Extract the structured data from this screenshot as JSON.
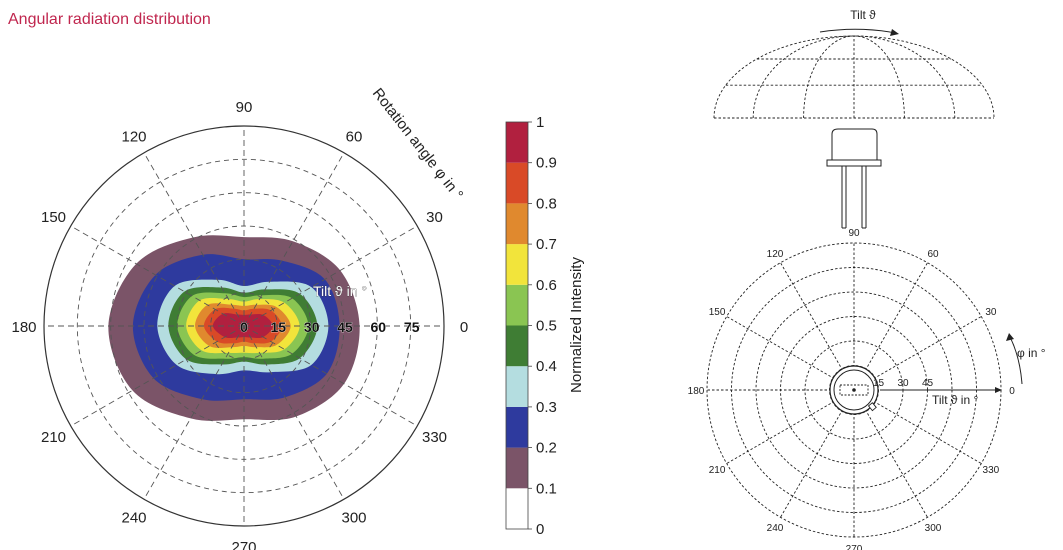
{
  "page": {
    "title": "Angular radiation distribution"
  },
  "chart_data": {
    "type": "heatmap",
    "subtype": "polar-contour",
    "title": "Angular radiation distribution",
    "rotation_axis": {
      "label": "Rotation angle φ in °",
      "ticks": [
        0,
        30,
        60,
        90,
        120,
        150,
        180,
        210,
        240,
        270,
        300,
        330
      ]
    },
    "tilt_axis": {
      "label": "Tilt ϑ in °",
      "range": [
        0,
        90
      ],
      "ticks": [
        0,
        15,
        30,
        45,
        60,
        75
      ]
    },
    "colorbar": {
      "label": "Normalized Intensity",
      "range": [
        0,
        1
      ],
      "ticks": [
        0,
        0.1,
        0.2,
        0.3,
        0.4,
        0.5,
        0.6,
        0.7,
        0.8,
        0.9,
        1
      ],
      "levels": [
        {
          "from": 0.0,
          "to": 0.1,
          "color": "#ffffff"
        },
        {
          "from": 0.1,
          "to": 0.2,
          "color": "#7b5468"
        },
        {
          "from": 0.2,
          "to": 0.3,
          "color": "#2e3a9e"
        },
        {
          "from": 0.3,
          "to": 0.4,
          "color": "#b4dde0"
        },
        {
          "from": 0.4,
          "to": 0.5,
          "color": "#3f7d34"
        },
        {
          "from": 0.5,
          "to": 0.6,
          "color": "#8ac552"
        },
        {
          "from": 0.6,
          "to": 0.7,
          "color": "#f2e43b"
        },
        {
          "from": 0.7,
          "to": 0.8,
          "color": "#e0892e"
        },
        {
          "from": 0.8,
          "to": 0.9,
          "color": "#d94a27"
        },
        {
          "from": 0.9,
          "to": 1.0,
          "color": "#b1203f"
        }
      ]
    },
    "contours": [
      {
        "level": 0.1,
        "tilt_by_angle": [
          {
            "phi": 0,
            "tilt": 52
          },
          {
            "phi": 30,
            "tilt": 50
          },
          {
            "phi": 60,
            "tilt": 44
          },
          {
            "phi": 90,
            "tilt": 40
          },
          {
            "phi": 120,
            "tilt": 46
          },
          {
            "phi": 150,
            "tilt": 56
          },
          {
            "phi": 180,
            "tilt": 61
          },
          {
            "phi": 210,
            "tilt": 58
          },
          {
            "phi": 240,
            "tilt": 48
          },
          {
            "phi": 270,
            "tilt": 42
          },
          {
            "phi": 300,
            "tilt": 47
          },
          {
            "phi": 330,
            "tilt": 52
          }
        ]
      },
      {
        "level": 0.2,
        "tilt_by_angle": [
          {
            "phi": 0,
            "tilt": 43
          },
          {
            "phi": 30,
            "tilt": 42
          },
          {
            "phi": 60,
            "tilt": 34
          },
          {
            "phi": 90,
            "tilt": 30
          },
          {
            "phi": 120,
            "tilt": 37
          },
          {
            "phi": 150,
            "tilt": 46
          },
          {
            "phi": 180,
            "tilt": 50
          },
          {
            "phi": 210,
            "tilt": 47
          },
          {
            "phi": 240,
            "tilt": 38
          },
          {
            "phi": 270,
            "tilt": 33
          },
          {
            "phi": 300,
            "tilt": 37
          },
          {
            "phi": 330,
            "tilt": 43
          }
        ]
      },
      {
        "level": 0.3,
        "tilt_by_angle": [
          {
            "phi": 0,
            "tilt": 38
          },
          {
            "phi": 30,
            "tilt": 35
          },
          {
            "phi": 60,
            "tilt": 23
          },
          {
            "phi": 90,
            "tilt": 18
          },
          {
            "phi": 120,
            "tilt": 24
          },
          {
            "phi": 150,
            "tilt": 36
          },
          {
            "phi": 180,
            "tilt": 39
          },
          {
            "phi": 210,
            "tilt": 35
          },
          {
            "phi": 240,
            "tilt": 25
          },
          {
            "phi": 270,
            "tilt": 20
          },
          {
            "phi": 300,
            "tilt": 24
          },
          {
            "phi": 330,
            "tilt": 35
          }
        ]
      },
      {
        "level": 0.4,
        "tilt_by_angle": [
          {
            "phi": 0,
            "tilt": 33
          },
          {
            "phi": 30,
            "tilt": 29
          },
          {
            "phi": 60,
            "tilt": 19
          },
          {
            "phi": 90,
            "tilt": 15
          },
          {
            "phi": 120,
            "tilt": 20
          },
          {
            "phi": 150,
            "tilt": 31
          },
          {
            "phi": 180,
            "tilt": 34
          },
          {
            "phi": 210,
            "tilt": 30
          },
          {
            "phi": 240,
            "tilt": 20
          },
          {
            "phi": 270,
            "tilt": 16
          },
          {
            "phi": 300,
            "tilt": 20
          },
          {
            "phi": 330,
            "tilt": 29
          }
        ]
      },
      {
        "level": 0.5,
        "tilt_by_angle": [
          {
            "phi": 0,
            "tilt": 29
          },
          {
            "phi": 30,
            "tilt": 25
          },
          {
            "phi": 60,
            "tilt": 16
          },
          {
            "phi": 90,
            "tilt": 13
          },
          {
            "phi": 120,
            "tilt": 17
          },
          {
            "phi": 150,
            "tilt": 27
          },
          {
            "phi": 180,
            "tilt": 30
          },
          {
            "phi": 210,
            "tilt": 26
          },
          {
            "phi": 240,
            "tilt": 17
          },
          {
            "phi": 270,
            "tilt": 14
          },
          {
            "phi": 300,
            "tilt": 17
          },
          {
            "phi": 330,
            "tilt": 25
          }
        ]
      },
      {
        "level": 0.6,
        "tilt_by_angle": [
          {
            "phi": 0,
            "tilt": 25
          },
          {
            "phi": 30,
            "tilt": 21
          },
          {
            "phi": 60,
            "tilt": 14
          },
          {
            "phi": 90,
            "tilt": 11
          },
          {
            "phi": 120,
            "tilt": 14
          },
          {
            "phi": 150,
            "tilt": 23
          },
          {
            "phi": 180,
            "tilt": 26
          },
          {
            "phi": 210,
            "tilt": 22
          },
          {
            "phi": 240,
            "tilt": 14
          },
          {
            "phi": 270,
            "tilt": 12
          },
          {
            "phi": 300,
            "tilt": 14
          },
          {
            "phi": 330,
            "tilt": 21
          }
        ]
      },
      {
        "level": 0.7,
        "tilt_by_angle": [
          {
            "phi": 0,
            "tilt": 21
          },
          {
            "phi": 30,
            "tilt": 17
          },
          {
            "phi": 60,
            "tilt": 11
          },
          {
            "phi": 90,
            "tilt": 9
          },
          {
            "phi": 120,
            "tilt": 11
          },
          {
            "phi": 150,
            "tilt": 19
          },
          {
            "phi": 180,
            "tilt": 22
          },
          {
            "phi": 210,
            "tilt": 18
          },
          {
            "phi": 240,
            "tilt": 11
          },
          {
            "phi": 270,
            "tilt": 9
          },
          {
            "phi": 300,
            "tilt": 11
          },
          {
            "phi": 330,
            "tilt": 17
          }
        ]
      },
      {
        "level": 0.8,
        "tilt_by_angle": [
          {
            "phi": 0,
            "tilt": 17
          },
          {
            "phi": 30,
            "tilt": 14
          },
          {
            "phi": 60,
            "tilt": 9
          },
          {
            "phi": 90,
            "tilt": 7
          },
          {
            "phi": 120,
            "tilt": 9
          },
          {
            "phi": 150,
            "tilt": 15
          },
          {
            "phi": 180,
            "tilt": 18
          },
          {
            "phi": 210,
            "tilt": 14
          },
          {
            "phi": 240,
            "tilt": 9
          },
          {
            "phi": 270,
            "tilt": 7
          },
          {
            "phi": 300,
            "tilt": 9
          },
          {
            "phi": 330,
            "tilt": 14
          }
        ]
      },
      {
        "level": 0.9,
        "tilt_by_angle": [
          {
            "phi": 0,
            "tilt": 13
          },
          {
            "phi": 30,
            "tilt": 10
          },
          {
            "phi": 60,
            "tilt": 6
          },
          {
            "phi": 90,
            "tilt": 5
          },
          {
            "phi": 120,
            "tilt": 6
          },
          {
            "phi": 150,
            "tilt": 11
          },
          {
            "phi": 180,
            "tilt": 14
          },
          {
            "phi": 210,
            "tilt": 10
          },
          {
            "phi": 240,
            "tilt": 6
          },
          {
            "phi": 270,
            "tilt": 5
          },
          {
            "phi": 300,
            "tilt": 6
          },
          {
            "phi": 330,
            "tilt": 10
          }
        ]
      }
    ]
  },
  "schematic": {
    "dome_label": "Tilt ϑ",
    "rotation_ticks": [
      0,
      30,
      60,
      90,
      120,
      150,
      180,
      210,
      240,
      270,
      300,
      330
    ],
    "tilt_ticks": [
      15,
      30,
      45
    ],
    "tilt_label": "Tilt ϑ in °",
    "phi_label": "φ in °"
  }
}
